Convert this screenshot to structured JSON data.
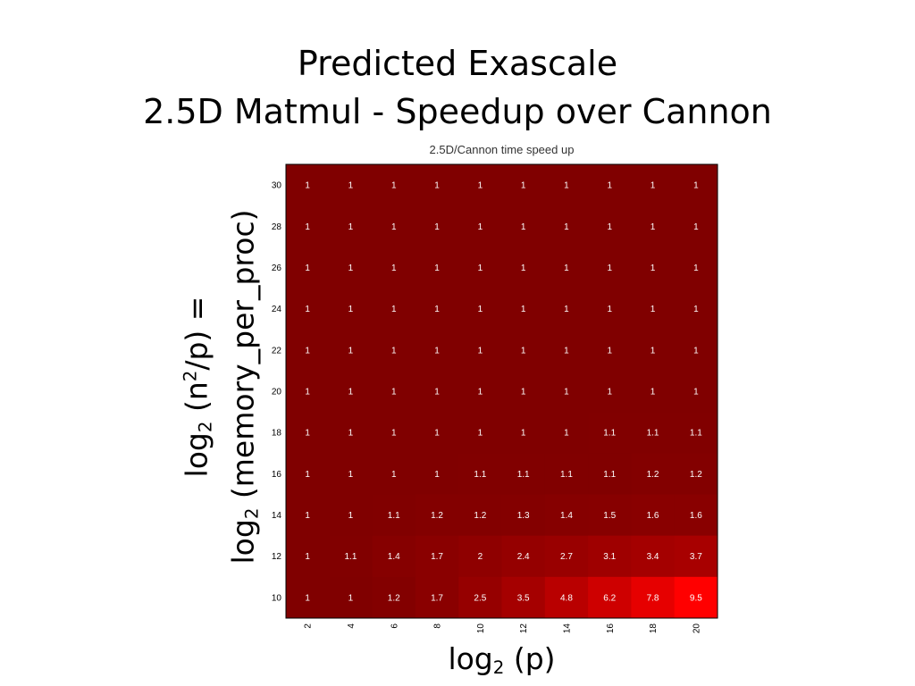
{
  "slide": {
    "title_line1": "Predicted Exascale",
    "title_line2": "2.5D Matmul - Speedup over Cannon"
  },
  "axes": {
    "ylabel_line1_pre": "log",
    "ylabel_line1_sub": "2",
    "ylabel_line1_mid": " (n",
    "ylabel_line1_sup": "2",
    "ylabel_line1_post": "/p) =",
    "ylabel_line2_pre": "log",
    "ylabel_line2_sub": "2",
    "ylabel_line2_post": " (memory_per_proc)",
    "xlabel_pre": "log",
    "xlabel_sub": "2",
    "xlabel_post": " (p)"
  },
  "chart_data": {
    "type": "heatmap",
    "title": "2.5D/Cannon time speed up",
    "x": [
      "2",
      "4",
      "6",
      "8",
      "10",
      "12",
      "14",
      "16",
      "18",
      "20"
    ],
    "y_top_to_bottom": [
      "30",
      "28",
      "26",
      "24",
      "22",
      "20",
      "18",
      "16",
      "14",
      "12",
      "10"
    ],
    "values": [
      [
        "1",
        "1",
        "1",
        "1",
        "1",
        "1",
        "1",
        "1",
        "1",
        "1"
      ],
      [
        "1",
        "1",
        "1",
        "1",
        "1",
        "1",
        "1",
        "1",
        "1",
        "1"
      ],
      [
        "1",
        "1",
        "1",
        "1",
        "1",
        "1",
        "1",
        "1",
        "1",
        "1"
      ],
      [
        "1",
        "1",
        "1",
        "1",
        "1",
        "1",
        "1",
        "1",
        "1",
        "1"
      ],
      [
        "1",
        "1",
        "1",
        "1",
        "1",
        "1",
        "1",
        "1",
        "1",
        "1"
      ],
      [
        "1",
        "1",
        "1",
        "1",
        "1",
        "1",
        "1",
        "1",
        "1",
        "1"
      ],
      [
        "1",
        "1",
        "1",
        "1",
        "1",
        "1",
        "1",
        "1.1",
        "1.1",
        "1.1"
      ],
      [
        "1",
        "1",
        "1",
        "1",
        "1.1",
        "1.1",
        "1.1",
        "1.1",
        "1.2",
        "1.2"
      ],
      [
        "1",
        "1",
        "1.1",
        "1.2",
        "1.2",
        "1.3",
        "1.4",
        "1.5",
        "1.6",
        "1.6"
      ],
      [
        "1",
        "1.1",
        "1.4",
        "1.7",
        "2",
        "2.4",
        "2.7",
        "3.1",
        "3.4",
        "3.7"
      ],
      [
        "1",
        "1",
        "1.2",
        "1.7",
        "2.5",
        "3.5",
        "4.8",
        "6.2",
        "7.8",
        "9.5"
      ]
    ],
    "colormap": {
      "low": "#800000",
      "high": "#ff0000"
    }
  }
}
